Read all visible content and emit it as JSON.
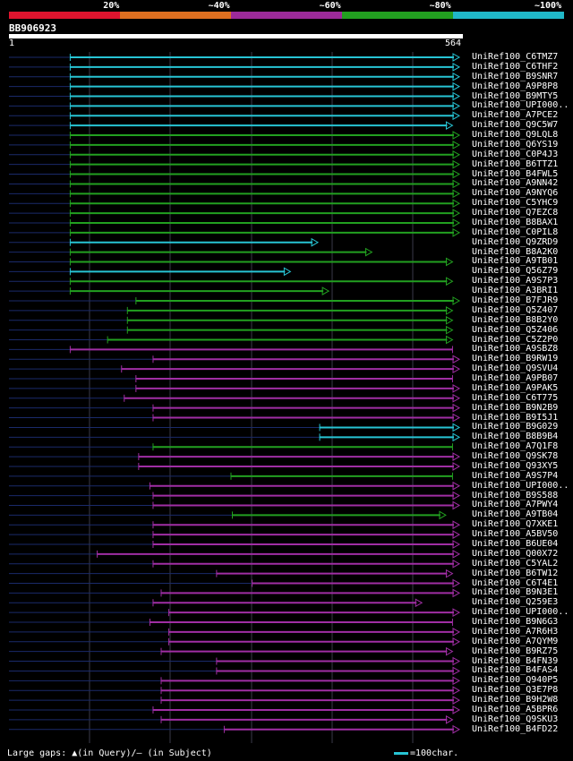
{
  "legend": {
    "items": [
      {
        "label": "20%",
        "color": "#e0142e"
      },
      {
        "label": "~40%",
        "color": "#e07020"
      },
      {
        "label": "~60%",
        "color": "#9c2a9a"
      },
      {
        "label": "~80%",
        "color": "#22a020"
      },
      {
        "label": "~100%",
        "color": "#20b8c8"
      }
    ]
  },
  "query": {
    "id": "BB906923",
    "start": "1",
    "end": "564",
    "length": 564
  },
  "hits": [
    {
      "label": "UniRef100_C6TMZ7",
      "c": "cyan",
      "s": 0.136,
      "e": 1.0,
      "arrow": true
    },
    {
      "label": "UniRef100_C6THF2",
      "c": "cyan",
      "s": 0.136,
      "e": 1.0,
      "arrow": true
    },
    {
      "label": "UniRef100_B9SNR7",
      "c": "cyan",
      "s": 0.136,
      "e": 1.0,
      "arrow": true
    },
    {
      "label": "UniRef100_A9P8P8",
      "c": "cyan",
      "s": 0.136,
      "e": 1.0,
      "arrow": true
    },
    {
      "label": "UniRef100_B9MTY5",
      "c": "cyan",
      "s": 0.136,
      "e": 1.0,
      "arrow": true
    },
    {
      "label": "UniRef100_UPI000..",
      "c": "cyan",
      "s": 0.136,
      "e": 1.0,
      "arrow": true
    },
    {
      "label": "UniRef100_A7PCE2",
      "c": "cyan",
      "s": 0.136,
      "e": 1.0,
      "arrow": true
    },
    {
      "label": "UniRef100_Q9C5W7",
      "c": "cyan",
      "s": 0.136,
      "e": 0.985,
      "arrow": true
    },
    {
      "label": "UniRef100_Q9LQL8",
      "c": "green",
      "s": 0.136,
      "e": 1.0,
      "arrow": true
    },
    {
      "label": "UniRef100_Q6YS19",
      "c": "green",
      "s": 0.136,
      "e": 1.0,
      "arrow": true
    },
    {
      "label": "UniRef100_C0P4J3",
      "c": "green",
      "s": 0.136,
      "e": 1.0,
      "arrow": true
    },
    {
      "label": "UniRef100_B6TTZ1",
      "c": "green",
      "s": 0.136,
      "e": 1.0,
      "arrow": true
    },
    {
      "label": "UniRef100_B4FWL5",
      "c": "green",
      "s": 0.136,
      "e": 1.0,
      "arrow": true
    },
    {
      "label": "UniRef100_A9NN42",
      "c": "green",
      "s": 0.136,
      "e": 1.0,
      "arrow": true
    },
    {
      "label": "UniRef100_A9NYQ6",
      "c": "green",
      "s": 0.136,
      "e": 1.0,
      "arrow": true
    },
    {
      "label": "UniRef100_C5YHC9",
      "c": "green",
      "s": 0.136,
      "e": 1.0,
      "arrow": true
    },
    {
      "label": "UniRef100_Q7EZC8",
      "c": "green",
      "s": 0.136,
      "e": 1.0,
      "arrow": true
    },
    {
      "label": "UniRef100_B8BAX1",
      "c": "green",
      "s": 0.136,
      "e": 1.0,
      "arrow": true
    },
    {
      "label": "UniRef100_C0PIL8",
      "c": "green",
      "s": 0.136,
      "e": 1.0,
      "arrow": true
    },
    {
      "label": "UniRef100_Q9ZRD9",
      "c": "cyan",
      "s": 0.136,
      "e": 0.686,
      "arrow": true
    },
    {
      "label": "UniRef100_B8A2K0",
      "c": "green",
      "s": 0.136,
      "e": 0.806,
      "arrow": true
    },
    {
      "label": "UniRef100_A9TB01",
      "c": "green",
      "s": 0.136,
      "e": 0.985,
      "arrow": true
    },
    {
      "label": "UniRef100_Q56Z79",
      "c": "cyan",
      "s": 0.136,
      "e": 0.625,
      "arrow": true
    },
    {
      "label": "UniRef100_A9S7P3",
      "c": "green",
      "s": 0.136,
      "e": 0.985,
      "arrow": true
    },
    {
      "label": "UniRef100_A3BRI1",
      "c": "green",
      "s": 0.136,
      "e": 0.71,
      "arrow": true
    },
    {
      "label": "UniRef100_B7FJR9",
      "c": "green",
      "s": 0.282,
      "e": 1.0,
      "arrow": true
    },
    {
      "label": "UniRef100_Q5Z407",
      "c": "green",
      "s": 0.263,
      "e": 0.985,
      "arrow": true
    },
    {
      "label": "UniRef100_B8B2Y0",
      "c": "green",
      "s": 0.263,
      "e": 0.985,
      "arrow": true
    },
    {
      "label": "UniRef100_Q5Z406",
      "c": "green",
      "s": 0.263,
      "e": 0.985,
      "arrow": true
    },
    {
      "label": "UniRef100_C5Z2P0",
      "c": "green",
      "s": 0.219,
      "e": 0.985,
      "arrow": true
    },
    {
      "label": "UniRef100_A9SBZ8",
      "c": "purple",
      "s": 0.136,
      "e": 0.985,
      "arrow": false
    },
    {
      "label": "UniRef100_B9RW19",
      "c": "purple",
      "s": 0.32,
      "e": 1.0,
      "arrow": true
    },
    {
      "label": "UniRef100_Q9SVU4",
      "c": "purple",
      "s": 0.25,
      "e": 1.0,
      "arrow": true
    },
    {
      "label": "UniRef100_A9PB07",
      "c": "purple",
      "s": 0.282,
      "e": 0.985,
      "arrow": false
    },
    {
      "label": "UniRef100_A9PAK5",
      "c": "purple",
      "s": 0.282,
      "e": 1.0,
      "arrow": true
    },
    {
      "label": "UniRef100_C6T775",
      "c": "purple",
      "s": 0.256,
      "e": 1.0,
      "arrow": true
    },
    {
      "label": "UniRef100_B9N2B9",
      "c": "purple",
      "s": 0.32,
      "e": 1.0,
      "arrow": true
    },
    {
      "label": "UniRef100_B9I5J1",
      "c": "purple",
      "s": 0.32,
      "e": 1.0,
      "arrow": true
    },
    {
      "label": "UniRef100_B9G029",
      "c": "cyan",
      "s": 0.69,
      "e": 1.0,
      "arrow": true
    },
    {
      "label": "UniRef100_B8B9B4",
      "c": "cyan",
      "s": 0.69,
      "e": 1.0,
      "arrow": true
    },
    {
      "label": "UniRef100_A7Q1F8",
      "c": "green",
      "s": 0.32,
      "e": 0.985,
      "arrow": false
    },
    {
      "label": "UniRef100_Q9SK78",
      "c": "purple",
      "s": 0.288,
      "e": 1.0,
      "arrow": true
    },
    {
      "label": "UniRef100_Q93XY5",
      "c": "purple",
      "s": 0.288,
      "e": 1.0,
      "arrow": true
    },
    {
      "label": "UniRef100_A9S7P4",
      "c": "green",
      "s": 0.493,
      "e": 0.985,
      "arrow": false
    },
    {
      "label": "UniRef100_UPI000..",
      "c": "purple",
      "s": 0.313,
      "e": 1.0,
      "arrow": true
    },
    {
      "label": "UniRef100_B9S588",
      "c": "purple",
      "s": 0.32,
      "e": 1.0,
      "arrow": true
    },
    {
      "label": "UniRef100_A7PWY4",
      "c": "purple",
      "s": 0.32,
      "e": 1.0,
      "arrow": true
    },
    {
      "label": "UniRef100_A9TB04",
      "c": "green",
      "s": 0.496,
      "e": 0.97,
      "arrow": true
    },
    {
      "label": "UniRef100_Q7XKE1",
      "c": "purple",
      "s": 0.32,
      "e": 1.0,
      "arrow": true
    },
    {
      "label": "UniRef100_A5BV50",
      "c": "purple",
      "s": 0.32,
      "e": 1.0,
      "arrow": true
    },
    {
      "label": "UniRef100_B6UE04",
      "c": "purple",
      "s": 0.32,
      "e": 1.0,
      "arrow": true
    },
    {
      "label": "UniRef100_Q00X72",
      "c": "purple",
      "s": 0.196,
      "e": 1.0,
      "arrow": true
    },
    {
      "label": "UniRef100_C5YAL2",
      "c": "purple",
      "s": 0.32,
      "e": 1.0,
      "arrow": true
    },
    {
      "label": "UniRef100_B6TW12",
      "c": "purple",
      "s": 0.461,
      "e": 0.985,
      "arrow": true
    },
    {
      "label": "UniRef100_C6T4E1",
      "c": "purple",
      "s": 0.54,
      "e": 1.0,
      "arrow": true
    },
    {
      "label": "UniRef100_B9N3E1",
      "c": "purple",
      "s": 0.338,
      "e": 1.0,
      "arrow": true
    },
    {
      "label": "UniRef100_Q259E3",
      "c": "purple",
      "s": 0.32,
      "e": 0.917,
      "arrow": true
    },
    {
      "label": "UniRef100_UPI000..",
      "c": "purple",
      "s": 0.355,
      "e": 1.0,
      "arrow": true
    },
    {
      "label": "UniRef100_B9N6G3",
      "c": "purple",
      "s": 0.313,
      "e": 0.985,
      "arrow": false
    },
    {
      "label": "UniRef100_A7R6H3",
      "c": "purple",
      "s": 0.355,
      "e": 1.0,
      "arrow": true
    },
    {
      "label": "UniRef100_A7QYM9",
      "c": "purple",
      "s": 0.355,
      "e": 1.0,
      "arrow": true
    },
    {
      "label": "UniRef100_B9RZ75",
      "c": "purple",
      "s": 0.338,
      "e": 0.985,
      "arrow": true
    },
    {
      "label": "UniRef100_B4FN39",
      "c": "purple",
      "s": 0.461,
      "e": 1.0,
      "arrow": true
    },
    {
      "label": "UniRef100_B4FAS4",
      "c": "purple",
      "s": 0.461,
      "e": 1.0,
      "arrow": true
    },
    {
      "label": "UniRef100_Q940P5",
      "c": "purple",
      "s": 0.338,
      "e": 1.0,
      "arrow": true
    },
    {
      "label": "UniRef100_Q3E7P8",
      "c": "purple",
      "s": 0.338,
      "e": 1.0,
      "arrow": true
    },
    {
      "label": "UniRef100_B9H2W8",
      "c": "purple",
      "s": 0.338,
      "e": 1.0,
      "arrow": true
    },
    {
      "label": "UniRef100_A5BPR6",
      "c": "purple",
      "s": 0.32,
      "e": 1.0,
      "arrow": true
    },
    {
      "label": "UniRef100_Q9SKU3",
      "c": "purple",
      "s": 0.338,
      "e": 0.985,
      "arrow": true
    },
    {
      "label": "UniRef100_B4FD22",
      "c": "purple",
      "s": 0.478,
      "e": 1.0,
      "arrow": true
    }
  ],
  "footer": {
    "text": "Large gaps: ▲(in Query)/– (in Subject)",
    "scale": "=100char."
  }
}
